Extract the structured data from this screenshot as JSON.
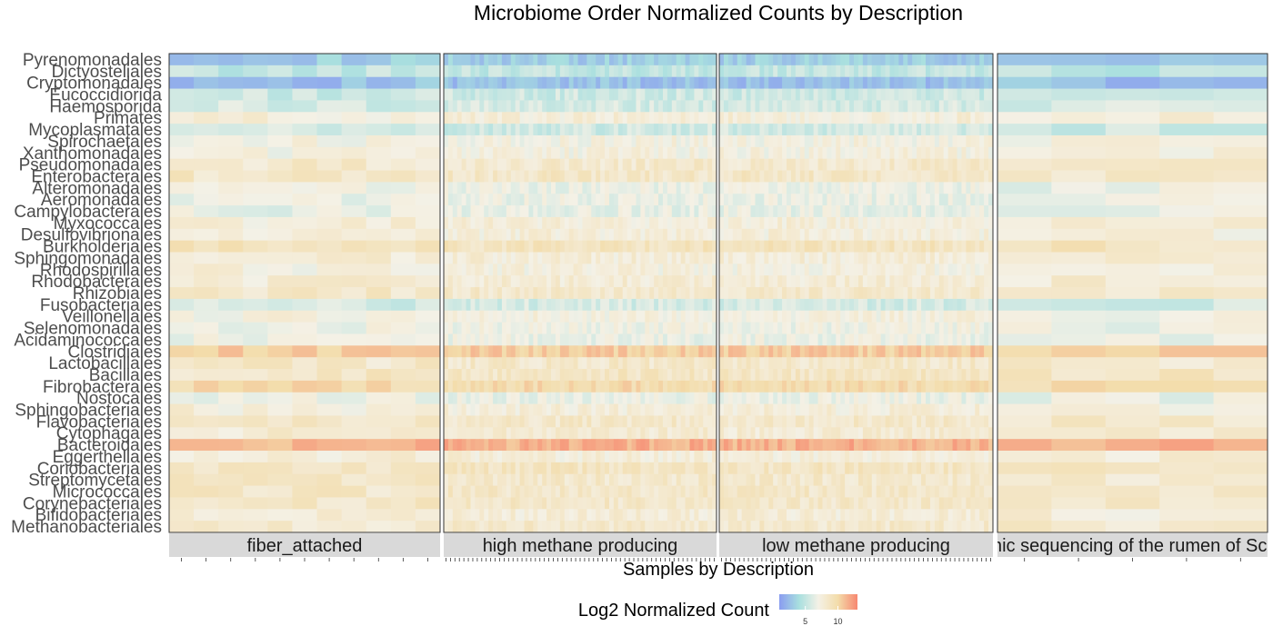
{
  "chart_data": {
    "type": "heatmap",
    "title": "Microbiome Order Normalized Counts by Description",
    "xlabel": "Samples by Description",
    "legend": {
      "title": "Log2 Normalized Count",
      "ticks": [
        5,
        10
      ],
      "range": [
        1,
        13
      ],
      "colors": [
        "#8a9cf0",
        "#a8dfdf",
        "#f4f1e6",
        "#f3dcaa",
        "#f78770"
      ]
    },
    "rows": [
      "Pyrenomonadales",
      "Dictyosteliales",
      "Cryptomonadales",
      "Eucoccidiorida",
      "Haemosporida",
      "Primates",
      "Mycoplasmatales",
      "Spirochaetales",
      "Xanthomonadales",
      "Pseudomonadales",
      "Enterobacterales",
      "Alteromonadales",
      "Aeromonadales",
      "Campylobacterales",
      "Myxococcales",
      "Desulfovibrionales",
      "Burkholderiales",
      "Sphingomonadales",
      "Rhodospirillales",
      "Rhodobacterales",
      "Rhizobiales",
      "Fusobacteriales",
      "Veillonellales",
      "Selenomonadales",
      "Acidaminococcales",
      "Clostridiales",
      "Lactobacillales",
      "Bacillales",
      "Fibrobacterales",
      "Nostocales",
      "Sphingobacteriales",
      "Flavobacteriales",
      "Cytophagales",
      "Bacteroidales",
      "Eggerthellales",
      "Coriobacteriales",
      "Streptomycetales",
      "Micrococcales",
      "Corynebacteriales",
      "Bifidobacteriales",
      "Methanobacteriales"
    ],
    "row_base_values": [
      3.2,
      5.0,
      2.6,
      5.5,
      5.8,
      7.6,
      5.6,
      7.2,
      7.3,
      8.2,
      8.5,
      6.8,
      6.7,
      6.6,
      7.6,
      7.5,
      8.9,
      7.7,
      7.4,
      7.8,
      8.3,
      5.8,
      7.3,
      6.9,
      6.8,
      10.5,
      8.3,
      8.6,
      9.8,
      6.7,
      7.6,
      8.3,
      7.9,
      11.5,
      7.6,
      8.7,
      8.3,
      8.4,
      8.4,
      7.7,
      8.2
    ],
    "facets": [
      {
        "label": "fiber_attached",
        "samples": 11
      },
      {
        "label": "high methane producing",
        "samples": 61
      },
      {
        "label": "low methane producing",
        "samples": 61
      },
      {
        "label": "Metagenomic sequencing of the rumen of Scottish cattle",
        "samples": 5
      }
    ]
  }
}
